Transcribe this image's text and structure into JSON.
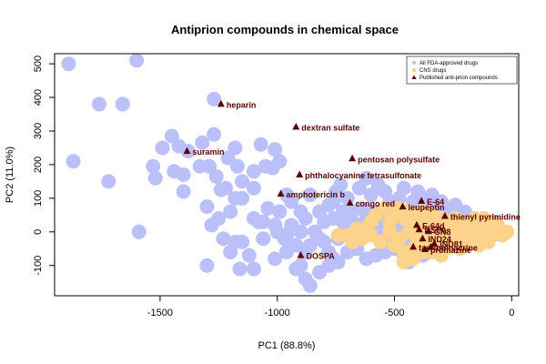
{
  "chart_data": {
    "type": "scatter",
    "title": "Antiprion compounds in chemical space",
    "xlabel": "PC1 (88.8%)",
    "ylabel": "PC2 (11.0%)",
    "xlim": [
      -1950,
      30
    ],
    "ylim": [
      -190,
      530
    ],
    "x_ticks": [
      -1500,
      -1000,
      -500,
      0
    ],
    "y_ticks": [
      -100,
      0,
      100,
      200,
      300,
      400,
      500
    ],
    "grid": false,
    "legend_position": "top-right",
    "colors": {
      "fda": "#bbc0fa",
      "cns": "#fdd28a",
      "antiprion": "#5a0000"
    },
    "series": [
      {
        "name": "All FDA-approved drugs",
        "marker": "circle",
        "points": [
          [
            -1890,
            500
          ],
          [
            -1600,
            510
          ],
          [
            -1760,
            380
          ],
          [
            -1660,
            380
          ],
          [
            -1270,
            395
          ],
          [
            -1870,
            210
          ],
          [
            -1720,
            150
          ],
          [
            -1590,
            0
          ],
          [
            -1530,
            195
          ],
          [
            -1490,
            250
          ],
          [
            -1450,
            285
          ],
          [
            -1420,
            255
          ],
          [
            -1380,
            240
          ],
          [
            -1320,
            265
          ],
          [
            -1270,
            290
          ],
          [
            -1520,
            160
          ],
          [
            -1440,
            180
          ],
          [
            -1400,
            170
          ],
          [
            -1330,
            195
          ],
          [
            -1290,
            195
          ],
          [
            -1260,
            165
          ],
          [
            -1210,
            220
          ],
          [
            -1180,
            250
          ],
          [
            -1170,
            195
          ],
          [
            -1150,
            150
          ],
          [
            -1100,
            180
          ],
          [
            -1050,
            195
          ],
          [
            -1020,
            190
          ],
          [
            -1070,
            260
          ],
          [
            -1010,
            245
          ],
          [
            -990,
            210
          ],
          [
            -1100,
            130
          ],
          [
            -1220,
            130
          ],
          [
            -1240,
            125
          ],
          [
            -1180,
            100
          ],
          [
            -1200,
            60
          ],
          [
            -1280,
            20
          ],
          [
            -1250,
            40
          ],
          [
            -1300,
            75
          ],
          [
            -1400,
            120
          ],
          [
            -1150,
            100
          ],
          [
            -1100,
            40
          ],
          [
            -1060,
            30
          ],
          [
            -1040,
            70
          ],
          [
            -1010,
            20
          ],
          [
            -990,
            60
          ],
          [
            -960,
            110
          ],
          [
            -940,
            90
          ],
          [
            -900,
            60
          ],
          [
            -880,
            40
          ],
          [
            -860,
            110
          ],
          [
            -820,
            60
          ],
          [
            -800,
            30
          ],
          [
            -780,
            80
          ],
          [
            -750,
            120
          ],
          [
            -730,
            140
          ],
          [
            -700,
            100
          ],
          [
            -680,
            60
          ],
          [
            -650,
            130
          ],
          [
            -620,
            160
          ],
          [
            -600,
            110
          ],
          [
            -570,
            140
          ],
          [
            -540,
            120
          ],
          [
            -520,
            90
          ],
          [
            -500,
            70
          ],
          [
            -480,
            100
          ],
          [
            -460,
            130
          ],
          [
            -440,
            60
          ],
          [
            -420,
            90
          ],
          [
            -400,
            120
          ],
          [
            -380,
            100
          ],
          [
            -360,
            80
          ],
          [
            -340,
            110
          ],
          [
            -320,
            60
          ],
          [
            -300,
            90
          ],
          [
            -280,
            70
          ],
          [
            -260,
            50
          ],
          [
            -240,
            80
          ],
          [
            -220,
            40
          ],
          [
            -200,
            60
          ],
          [
            -180,
            20
          ],
          [
            -160,
            40
          ],
          [
            -140,
            10
          ],
          [
            -120,
            20
          ],
          [
            -100,
            0
          ],
          [
            -80,
            -10
          ],
          [
            -60,
            5
          ],
          [
            -40,
            0
          ],
          [
            -700,
            0
          ],
          [
            -740,
            -20
          ],
          [
            -760,
            40
          ],
          [
            -720,
            30
          ],
          [
            -660,
            20
          ],
          [
            -640,
            -10
          ],
          [
            -620,
            40
          ],
          [
            -580,
            0
          ],
          [
            -560,
            -20
          ],
          [
            -540,
            30
          ],
          [
            -520,
            -30
          ],
          [
            -500,
            10
          ],
          [
            -480,
            -20
          ],
          [
            -460,
            30
          ],
          [
            -440,
            -40
          ],
          [
            -420,
            0
          ],
          [
            -400,
            -20
          ],
          [
            -380,
            20
          ],
          [
            -360,
            -40
          ],
          [
            -340,
            0
          ],
          [
            -320,
            -30
          ],
          [
            -300,
            10
          ],
          [
            -280,
            -20
          ],
          [
            -260,
            0
          ],
          [
            -240,
            -30
          ],
          [
            -220,
            10
          ],
          [
            -200,
            -10
          ],
          [
            -180,
            0
          ],
          [
            -800,
            -30
          ],
          [
            -780,
            -60
          ],
          [
            -760,
            -80
          ],
          [
            -820,
            -20
          ],
          [
            -840,
            0
          ],
          [
            -860,
            -40
          ],
          [
            -880,
            -60
          ],
          [
            -900,
            -100
          ],
          [
            -920,
            -110
          ],
          [
            -880,
            -140
          ],
          [
            -860,
            -160
          ],
          [
            -820,
            -120
          ],
          [
            -780,
            -100
          ],
          [
            -740,
            -90
          ],
          [
            -700,
            -60
          ],
          [
            -660,
            -50
          ],
          [
            -620,
            -80
          ],
          [
            -580,
            -70
          ],
          [
            -540,
            -60
          ],
          [
            -500,
            -50
          ],
          [
            -460,
            -70
          ],
          [
            -440,
            -90
          ],
          [
            -420,
            -60
          ],
          [
            -380,
            -70
          ],
          [
            -350,
            -60
          ],
          [
            -320,
            -50
          ],
          [
            -960,
            -60
          ],
          [
            -1010,
            -80
          ],
          [
            -970,
            -20
          ],
          [
            -940,
            20
          ],
          [
            -1060,
            -20
          ],
          [
            -1120,
            -70
          ],
          [
            -1200,
            -60
          ],
          [
            -1230,
            -20
          ],
          [
            -1150,
            -30
          ],
          [
            -1000,
            0
          ],
          [
            -1100,
            -110
          ],
          [
            -1160,
            -110
          ],
          [
            -1180,
            -30
          ],
          [
            -1300,
            -100
          ],
          [
            -900,
            0
          ],
          [
            -920,
            -40
          ],
          [
            -960,
            -10
          ],
          [
            -1080,
            30
          ],
          [
            -600,
            60
          ],
          [
            -560,
            60
          ],
          [
            -520,
            40
          ],
          [
            -480,
            40
          ],
          [
            -640,
            70
          ],
          [
            -680,
            30
          ],
          [
            -720,
            60
          ],
          [
            -760,
            90
          ]
        ]
      },
      {
        "name": "CNS drugs",
        "marker": "circle",
        "points": [
          [
            -680,
            -30
          ],
          [
            -640,
            -20
          ],
          [
            -600,
            -10
          ],
          [
            -560,
            -30
          ],
          [
            -520,
            0
          ],
          [
            -500,
            -40
          ],
          [
            -480,
            -20
          ],
          [
            -460,
            -60
          ],
          [
            -440,
            0
          ],
          [
            -420,
            -50
          ],
          [
            -400,
            -20
          ],
          [
            -380,
            10
          ],
          [
            -360,
            -30
          ],
          [
            -340,
            -60
          ],
          [
            -320,
            0
          ],
          [
            -300,
            -20
          ],
          [
            -280,
            -50
          ],
          [
            -260,
            10
          ],
          [
            -240,
            -20
          ],
          [
            -220,
            20
          ],
          [
            -200,
            0
          ],
          [
            -180,
            -30
          ],
          [
            -160,
            10
          ],
          [
            -140,
            -10
          ],
          [
            -120,
            20
          ],
          [
            -100,
            -20
          ],
          [
            -80,
            0
          ],
          [
            -60,
            10
          ],
          [
            -40,
            -10
          ],
          [
            -20,
            0
          ],
          [
            -500,
            50
          ],
          [
            -480,
            70
          ],
          [
            -460,
            40
          ],
          [
            -440,
            60
          ],
          [
            -420,
            20
          ],
          [
            -400,
            40
          ],
          [
            -380,
            60
          ],
          [
            -360,
            30
          ],
          [
            -340,
            50
          ],
          [
            -320,
            30
          ],
          [
            -300,
            40
          ],
          [
            -280,
            30
          ],
          [
            -260,
            20
          ],
          [
            -240,
            40
          ],
          [
            -220,
            30
          ],
          [
            -200,
            20
          ],
          [
            -180,
            30
          ],
          [
            -160,
            40
          ],
          [
            -140,
            30
          ],
          [
            -120,
            40
          ],
          [
            -100,
            20
          ],
          [
            -80,
            30
          ],
          [
            -60,
            20
          ],
          [
            -600,
            30
          ],
          [
            -620,
            10
          ],
          [
            -580,
            50
          ],
          [
            -540,
            70
          ],
          [
            -520,
            30
          ],
          [
            -460,
            -90
          ],
          [
            -420,
            -80
          ],
          [
            -380,
            -60
          ],
          [
            -340,
            -30
          ],
          [
            -300,
            -70
          ],
          [
            -260,
            -40
          ],
          [
            -220,
            -50
          ],
          [
            -180,
            -20
          ],
          [
            -140,
            -40
          ],
          [
            -100,
            -30
          ],
          [
            -660,
            10
          ],
          [
            -700,
            -10
          ],
          [
            -740,
            -10
          ]
        ]
      },
      {
        "name": "Published anti-prion compounds",
        "marker": "triangle",
        "points": [
          {
            "x": -1240,
            "y": 380,
            "label": "heparin"
          },
          {
            "x": -920,
            "y": 312,
            "label": "dextran sulfate"
          },
          {
            "x": -1385,
            "y": 240,
            "label": "suramin"
          },
          {
            "x": -680,
            "y": 218,
            "label": "pentosan polysulfate"
          },
          {
            "x": -905,
            "y": 170,
            "label": "phthalocyanine tetrasulfonate"
          },
          {
            "x": -985,
            "y": 113,
            "label": "amphotericin b"
          },
          {
            "x": -690,
            "y": 86,
            "label": "congo red"
          },
          {
            "x": -385,
            "y": 92,
            "label": "E-64"
          },
          {
            "x": -465,
            "y": 75,
            "label": "leupeptin"
          },
          {
            "x": -285,
            "y": 47,
            "label": "thienyl pyrimidine"
          },
          {
            "x": -405,
            "y": 20,
            "label": "E-64d"
          },
          {
            "x": -395,
            "y": 7,
            "label": "DSPA"
          },
          {
            "x": -355,
            "y": 2,
            "label": "GN8"
          },
          {
            "x": -380,
            "y": -20,
            "label": "IND24"
          },
          {
            "x": -330,
            "y": -35,
            "label": "IND81"
          },
          {
            "x": -345,
            "y": -45,
            "label": "quinacrine"
          },
          {
            "x": -370,
            "y": -52,
            "label": "promazine"
          },
          {
            "x": -420,
            "y": -45,
            "label": "tacrine"
          },
          {
            "x": -900,
            "y": -70,
            "label": "DOSPA"
          }
        ]
      }
    ],
    "annotations_text": {
      "heparin": "heparin",
      "dextran_sulfate": "dextran sulfate",
      "suramin": "suramin",
      "pentosan_polysulfate": "pentosan polysulfate",
      "phthalocyanine_tetrasulfonate": "phthalocyanine tetrasulfonate",
      "amphotericin_b": "amphotericin b",
      "congo_red": "congo red",
      "e64": "E-64",
      "leupeptin": "leupeptin",
      "thienyl_pyrimidine": "thienyl pyrimidine",
      "e64d": "E-64d",
      "dospa": "DOSPA"
    }
  }
}
